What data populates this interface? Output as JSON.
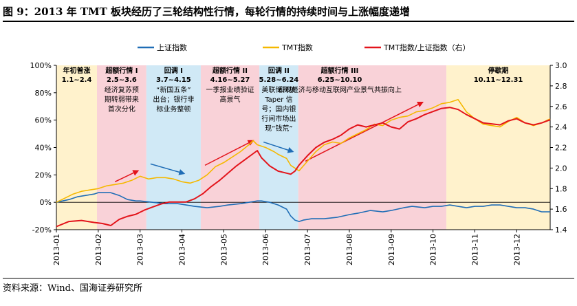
{
  "figure": {
    "title": "图 9：2013 年 TMT 板块经历了三轮结构性行情，每轮行情的持续时间与上涨幅度递增",
    "source": "资料来源：Wind、国海证券研究所"
  },
  "chart_data": {
    "type": "line",
    "title": "图 9：2013 年 TMT 板块经历了三轮结构性行情，每轮行情的持续时间与上涨幅度递增",
    "x_tick_labels": [
      "2013-01",
      "2013-02",
      "2013-03",
      "2013-04",
      "2013-05",
      "2013-06",
      "2013-07",
      "2013-08",
      "2013-09",
      "2013-10",
      "2013-11",
      "2013-12"
    ],
    "x_range": [
      0,
      11.8
    ],
    "left_axis": {
      "range": [
        -20,
        100
      ],
      "ticks": [
        -20,
        0,
        20,
        40,
        60,
        80,
        100
      ],
      "tick_labels": [
        "-20%",
        "0%",
        "20%",
        "40%",
        "60%",
        "80%",
        "100%"
      ]
    },
    "right_axis": {
      "range": [
        1.4,
        3.0
      ],
      "ticks": [
        1.4,
        1.6,
        1.8,
        2.0,
        2.2,
        2.4,
        2.6,
        2.8,
        3.0
      ],
      "tick_labels": [
        "1.4",
        "1.6",
        "1.8",
        "2.0",
        "2.2",
        "2.4",
        "2.6",
        "2.8",
        "3.0"
      ]
    },
    "legend": {
      "position": "top",
      "entries": [
        "上证指数",
        "TMT指数",
        "TMT指数/上证指数（右）"
      ]
    },
    "colors": {
      "上证指数": "#1F6DB6",
      "TMT指数": "#F5B800",
      "TMT指数/上证指数（右）": "#E3141B"
    },
    "series": [
      {
        "name": "上证指数",
        "axis": "left",
        "points": [
          [
            0,
            0
          ],
          [
            0.3,
            2
          ],
          [
            0.5,
            4
          ],
          [
            0.7,
            5
          ],
          [
            0.9,
            6
          ],
          [
            1.0,
            7
          ],
          [
            1.3,
            7
          ],
          [
            1.5,
            5
          ],
          [
            1.7,
            2
          ],
          [
            1.9,
            1
          ],
          [
            2.0,
            1
          ],
          [
            2.3,
            0
          ],
          [
            2.6,
            -1
          ],
          [
            2.9,
            -1
          ],
          [
            3.1,
            -2
          ],
          [
            3.3,
            -3
          ],
          [
            3.6,
            -4
          ],
          [
            3.9,
            -3
          ],
          [
            4.1,
            -2
          ],
          [
            4.4,
            -1
          ],
          [
            4.6,
            0
          ],
          [
            4.8,
            1
          ],
          [
            4.9,
            1
          ],
          [
            5.1,
            0
          ],
          [
            5.3,
            -2
          ],
          [
            5.5,
            -5
          ],
          [
            5.6,
            -10
          ],
          [
            5.7,
            -13
          ],
          [
            5.8,
            -14
          ],
          [
            5.9,
            -13
          ],
          [
            6.1,
            -12
          ],
          [
            6.4,
            -12
          ],
          [
            6.7,
            -11
          ],
          [
            7.0,
            -9
          ],
          [
            7.2,
            -8
          ],
          [
            7.5,
            -6
          ],
          [
            7.8,
            -7
          ],
          [
            8.0,
            -6
          ],
          [
            8.3,
            -4
          ],
          [
            8.5,
            -3
          ],
          [
            8.8,
            -4
          ],
          [
            9.0,
            -3
          ],
          [
            9.2,
            -3
          ],
          [
            9.4,
            -2
          ],
          [
            9.6,
            -3
          ],
          [
            9.8,
            -4
          ],
          [
            10.0,
            -3
          ],
          [
            10.2,
            -3
          ],
          [
            10.4,
            -2
          ],
          [
            10.6,
            -2
          ],
          [
            10.8,
            -3
          ],
          [
            11.0,
            -4
          ],
          [
            11.2,
            -4
          ],
          [
            11.4,
            -5
          ],
          [
            11.6,
            -7
          ],
          [
            11.8,
            -7
          ]
        ]
      },
      {
        "name": "TMT指数",
        "axis": "left",
        "points": [
          [
            0,
            0
          ],
          [
            0.2,
            3
          ],
          [
            0.4,
            6
          ],
          [
            0.6,
            8
          ],
          [
            0.8,
            9
          ],
          [
            1.0,
            10
          ],
          [
            1.2,
            12
          ],
          [
            1.4,
            13
          ],
          [
            1.6,
            14
          ],
          [
            1.8,
            16
          ],
          [
            2.0,
            19
          ],
          [
            2.2,
            17
          ],
          [
            2.4,
            18
          ],
          [
            2.6,
            18
          ],
          [
            2.8,
            17
          ],
          [
            3.0,
            15
          ],
          [
            3.2,
            14
          ],
          [
            3.4,
            16
          ],
          [
            3.6,
            20
          ],
          [
            3.8,
            26
          ],
          [
            4.0,
            29
          ],
          [
            4.2,
            33
          ],
          [
            4.4,
            37
          ],
          [
            4.6,
            42
          ],
          [
            4.7,
            45
          ],
          [
            4.8,
            42
          ],
          [
            5.0,
            40
          ],
          [
            5.2,
            37
          ],
          [
            5.3,
            35
          ],
          [
            5.5,
            32
          ],
          [
            5.6,
            27
          ],
          [
            5.8,
            23
          ],
          [
            6.0,
            30
          ],
          [
            6.2,
            37
          ],
          [
            6.4,
            42
          ],
          [
            6.6,
            44
          ],
          [
            6.8,
            43
          ],
          [
            7.0,
            47
          ],
          [
            7.2,
            50
          ],
          [
            7.4,
            53
          ],
          [
            7.6,
            57
          ],
          [
            7.8,
            56
          ],
          [
            8.0,
            60
          ],
          [
            8.2,
            62
          ],
          [
            8.4,
            63
          ],
          [
            8.6,
            66
          ],
          [
            8.8,
            67
          ],
          [
            9.0,
            69
          ],
          [
            9.2,
            72
          ],
          [
            9.4,
            73
          ],
          [
            9.6,
            75
          ],
          [
            9.8,
            66
          ],
          [
            10.0,
            61
          ],
          [
            10.2,
            57
          ],
          [
            10.4,
            56
          ],
          [
            10.6,
            55
          ],
          [
            10.8,
            59
          ],
          [
            11.0,
            62
          ],
          [
            11.2,
            58
          ],
          [
            11.4,
            56
          ],
          [
            11.6,
            58
          ],
          [
            11.8,
            61
          ]
        ]
      },
      {
        "name": "TMT指数/上证指数（右）",
        "axis": "right",
        "points": [
          [
            0,
            1.43
          ],
          [
            0.3,
            1.48
          ],
          [
            0.6,
            1.49
          ],
          [
            0.9,
            1.47
          ],
          [
            1.1,
            1.46
          ],
          [
            1.3,
            1.44
          ],
          [
            1.5,
            1.5
          ],
          [
            1.7,
            1.53
          ],
          [
            1.9,
            1.55
          ],
          [
            2.1,
            1.59
          ],
          [
            2.3,
            1.62
          ],
          [
            2.5,
            1.65
          ],
          [
            2.7,
            1.67
          ],
          [
            2.9,
            1.67
          ],
          [
            3.1,
            1.67
          ],
          [
            3.3,
            1.7
          ],
          [
            3.5,
            1.75
          ],
          [
            3.7,
            1.82
          ],
          [
            3.9,
            1.88
          ],
          [
            4.1,
            1.95
          ],
          [
            4.3,
            2.02
          ],
          [
            4.5,
            2.08
          ],
          [
            4.7,
            2.14
          ],
          [
            4.8,
            2.17
          ],
          [
            4.9,
            2.1
          ],
          [
            5.1,
            2.02
          ],
          [
            5.3,
            1.97
          ],
          [
            5.5,
            1.95
          ],
          [
            5.6,
            1.94
          ],
          [
            5.7,
            1.97
          ],
          [
            5.8,
            2.03
          ],
          [
            6.0,
            2.12
          ],
          [
            6.2,
            2.2
          ],
          [
            6.4,
            2.25
          ],
          [
            6.6,
            2.28
          ],
          [
            6.8,
            2.32
          ],
          [
            7.0,
            2.38
          ],
          [
            7.2,
            2.42
          ],
          [
            7.4,
            2.4
          ],
          [
            7.6,
            2.42
          ],
          [
            7.8,
            2.44
          ],
          [
            8.0,
            2.4
          ],
          [
            8.2,
            2.38
          ],
          [
            8.4,
            2.45
          ],
          [
            8.6,
            2.48
          ],
          [
            8.8,
            2.52
          ],
          [
            9.0,
            2.55
          ],
          [
            9.2,
            2.58
          ],
          [
            9.4,
            2.59
          ],
          [
            9.6,
            2.57
          ],
          [
            9.8,
            2.52
          ],
          [
            10.0,
            2.48
          ],
          [
            10.2,
            2.44
          ],
          [
            10.4,
            2.43
          ],
          [
            10.6,
            2.42
          ],
          [
            10.8,
            2.46
          ],
          [
            11.0,
            2.48
          ],
          [
            11.2,
            2.44
          ],
          [
            11.4,
            2.42
          ],
          [
            11.6,
            2.44
          ],
          [
            11.8,
            2.47
          ]
        ]
      }
    ],
    "phases": [
      {
        "title": "年初普涨",
        "dates": "1.1~2.4",
        "desc": [],
        "start": 0,
        "end": 0.97,
        "color": "#FFF2CC"
      },
      {
        "title": "超额行情 I",
        "dates": "2.5~3.6",
        "desc": [
          "经济复苏预",
          "期转弱带来",
          "首次分化"
        ],
        "start": 0.97,
        "end": 2.15,
        "color": "#F9D2D8"
      },
      {
        "title": "回调 I",
        "dates": "3.7~4.15",
        "desc": [
          "“新国五条”",
          "出台；银行非",
          "标业务整顿"
        ],
        "start": 2.15,
        "end": 3.45,
        "color": "#D0E9F6"
      },
      {
        "title": "超额行情 II",
        "dates": "4.16~5.27",
        "desc": [
          "一季报业绩验证",
          "高景气"
        ],
        "start": 3.45,
        "end": 4.85,
        "color": "#F9D2D8"
      },
      {
        "title": "回调 II",
        "dates": "5.28~6.24",
        "desc": [
          "美联储释放",
          "Taper 信",
          "号；国内银",
          "行间市场出",
          "现“钱荒”"
        ],
        "start": 4.85,
        "end": 5.78,
        "color": "#D0E9F6"
      },
      {
        "title": "超额行情 III",
        "dates": "6.25~10.10",
        "desc": [
          "宏观经济与移动互联网产业景气共振向上"
        ],
        "start": 5.78,
        "end": 9.32,
        "color": "#F9D2D8"
      },
      {
        "title": "停歇期",
        "dates": "10.11~12.31",
        "desc": [],
        "start": 9.32,
        "end": 11.8,
        "color": "#FFF2CC"
      }
    ]
  }
}
